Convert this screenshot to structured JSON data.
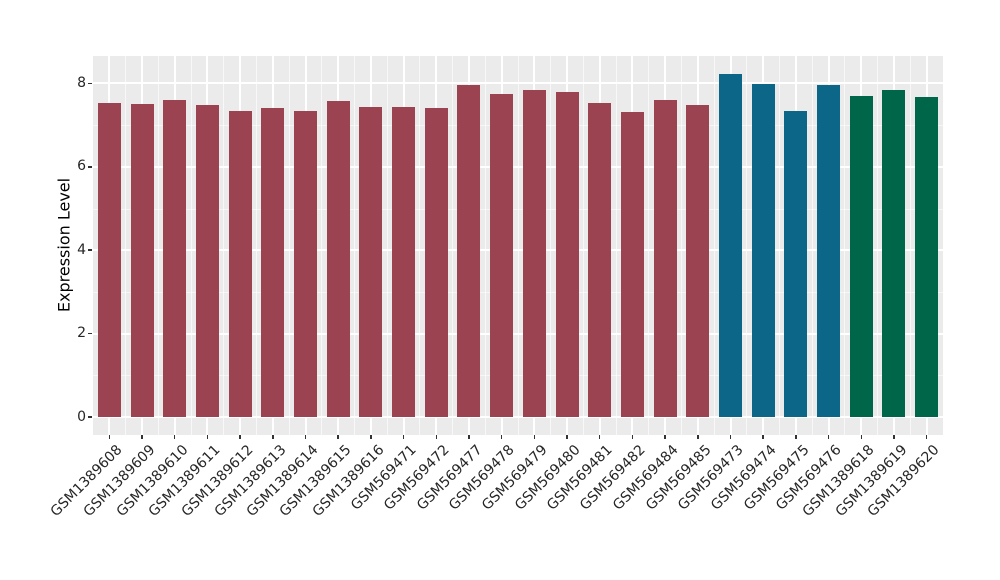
{
  "chart_data": {
    "type": "bar",
    "title": "",
    "xlabel": "",
    "ylabel": "Expression Level",
    "categories": [
      "GSM1389608",
      "GSM1389609",
      "GSM1389610",
      "GSM1389611",
      "GSM1389612",
      "GSM1389613",
      "GSM1389614",
      "GSM1389615",
      "GSM1389616",
      "GSM569471",
      "GSM569472",
      "GSM569477",
      "GSM569478",
      "GSM569479",
      "GSM569480",
      "GSM569481",
      "GSM569482",
      "GSM569484",
      "GSM569485",
      "GSM569473",
      "GSM569474",
      "GSM569475",
      "GSM569476",
      "GSM1389618",
      "GSM1389619",
      "GSM1389620"
    ],
    "values": [
      7.52,
      7.5,
      7.6,
      7.48,
      7.34,
      7.41,
      7.35,
      7.58,
      7.44,
      7.43,
      7.41,
      7.97,
      7.74,
      7.85,
      7.79,
      7.53,
      7.31,
      7.6,
      7.49,
      8.22,
      7.98,
      7.33,
      7.96,
      7.69,
      7.84,
      7.67
    ],
    "groups": [
      "maroon",
      "maroon",
      "maroon",
      "maroon",
      "maroon",
      "maroon",
      "maroon",
      "maroon",
      "maroon",
      "maroon",
      "maroon",
      "maroon",
      "maroon",
      "maroon",
      "maroon",
      "maroon",
      "maroon",
      "maroon",
      "maroon",
      "teal",
      "teal",
      "teal",
      "teal",
      "green",
      "green",
      "green"
    ],
    "group_colors": {
      "maroon": "#9C4352",
      "teal": "#0C6688",
      "green": "#006649"
    },
    "yticks": [
      0,
      2,
      4,
      6,
      8
    ],
    "yticks_minor": [
      1,
      3,
      5,
      7
    ],
    "ylim": [
      0,
      8.65
    ],
    "grid": true,
    "legend": false,
    "panel_background": "#EBEBEB",
    "grid_color": "#FFFFFF",
    "axis_text_color": "#262626"
  }
}
